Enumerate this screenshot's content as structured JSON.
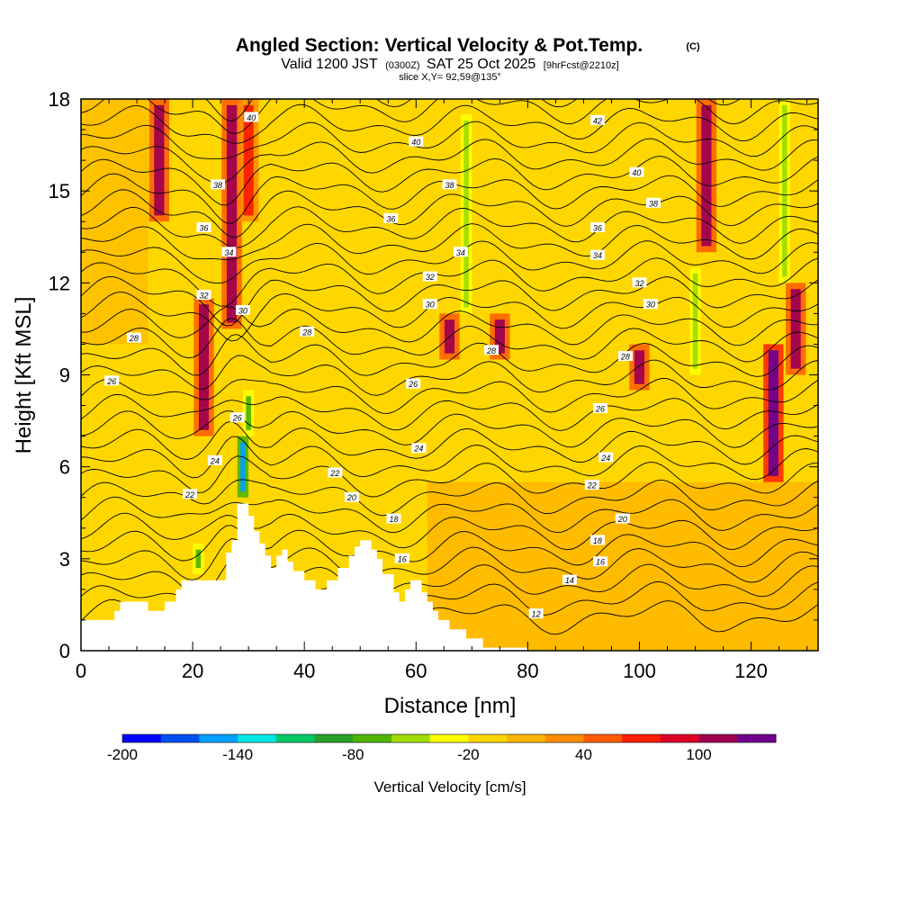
{
  "chart_data": {
    "type": "heatmap",
    "title": "Angled Section: Vertical Velocity & Pot.Temp.",
    "title_suffix": "(C)",
    "subtitle_a": "Valid 1200 JST",
    "subtitle_b": "(0300Z)",
    "subtitle_c": "SAT 25 Oct 2025",
    "subtitle_d": "[9hrFcst@2210z]",
    "slice_label": "slice X,Y= 92,59@135°",
    "xlabel": "Distance [nm]",
    "ylabel": "Height [Kft MSL]",
    "xlim": [
      0,
      132
    ],
    "ylim": [
      0,
      18
    ],
    "x_ticks": [
      0,
      20,
      40,
      60,
      80,
      100,
      120
    ],
    "y_ticks": [
      0,
      3,
      6,
      9,
      12,
      15,
      18
    ],
    "colorbar": {
      "label": "Vertical Velocity [cm/s]",
      "range": [
        -200,
        140
      ],
      "tick_values": [
        -200,
        -140,
        -80,
        -20,
        40,
        100
      ],
      "colors": [
        "#0000ff",
        "#0050f0",
        "#00a0ff",
        "#00e5e5",
        "#00c864",
        "#28a028",
        "#50b400",
        "#a0dc00",
        "#ffff00",
        "#ffd700",
        "#ffb400",
        "#ff8c00",
        "#ff5a00",
        "#ff1e00",
        "#dc0028",
        "#a00050",
        "#6e008c"
      ]
    },
    "terrain_kft": [
      [
        0,
        1
      ],
      [
        6,
        1
      ],
      [
        6,
        1.3
      ],
      [
        7,
        1.3
      ],
      [
        7,
        1.6
      ],
      [
        12,
        1.6
      ],
      [
        12,
        1.3
      ],
      [
        15,
        1.3
      ],
      [
        15,
        1.6
      ],
      [
        17,
        1.6
      ],
      [
        17,
        2
      ],
      [
        18,
        2
      ],
      [
        18,
        2.3
      ],
      [
        26,
        2.3
      ],
      [
        26,
        3.2
      ],
      [
        27,
        3.2
      ],
      [
        27,
        3.6
      ],
      [
        28,
        3.6
      ],
      [
        28,
        4.8
      ],
      [
        30,
        4.8
      ],
      [
        30,
        4.4
      ],
      [
        31,
        4.4
      ],
      [
        31,
        3.9
      ],
      [
        32,
        3.9
      ],
      [
        32,
        3.5
      ],
      [
        33,
        3.5
      ],
      [
        33,
        3.1
      ],
      [
        34,
        3.1
      ],
      [
        34,
        2.7
      ],
      [
        35,
        2.7
      ],
      [
        35,
        3.1
      ],
      [
        36,
        3.1
      ],
      [
        36,
        3.3
      ],
      [
        37,
        3.3
      ],
      [
        37,
        2.9
      ],
      [
        38,
        2.9
      ],
      [
        38,
        2.6
      ],
      [
        40,
        2.6
      ],
      [
        40,
        2.3
      ],
      [
        42,
        2.3
      ],
      [
        42,
        2
      ],
      [
        44,
        2
      ],
      [
        44,
        2.3
      ],
      [
        46,
        2.3
      ],
      [
        46,
        2.7
      ],
      [
        48,
        2.7
      ],
      [
        48,
        3.1
      ],
      [
        49,
        3.1
      ],
      [
        49,
        3.4
      ],
      [
        50,
        3.4
      ],
      [
        50,
        3.6
      ],
      [
        52,
        3.6
      ],
      [
        52,
        3.3
      ],
      [
        53,
        3.3
      ],
      [
        53,
        3
      ],
      [
        54,
        3
      ],
      [
        54,
        2.5
      ],
      [
        56,
        2.5
      ],
      [
        56,
        1.9
      ],
      [
        57,
        1.9
      ],
      [
        57,
        1.6
      ],
      [
        58,
        1.6
      ],
      [
        58,
        2
      ],
      [
        59,
        2
      ],
      [
        59,
        2.3
      ],
      [
        61,
        2.3
      ],
      [
        61,
        1.9
      ],
      [
        62,
        1.9
      ],
      [
        62,
        1.6
      ],
      [
        63,
        1.6
      ],
      [
        63,
        1.3
      ],
      [
        64,
        1.3
      ],
      [
        64,
        1
      ],
      [
        66,
        1
      ],
      [
        66,
        0.7
      ],
      [
        69,
        0.7
      ],
      [
        69,
        0.4
      ],
      [
        72,
        0.4
      ],
      [
        72,
        0.1
      ],
      [
        80,
        0.1
      ],
      [
        80,
        0
      ],
      [
        132,
        0
      ]
    ],
    "updraft_bands": [
      {
        "x": 14,
        "y0": 14,
        "y1": 18,
        "w": 100
      },
      {
        "x": 22,
        "y0": 7,
        "y1": 11.5,
        "w": 100
      },
      {
        "x": 27,
        "y0": 10.5,
        "y1": 18,
        "w": 100
      },
      {
        "x": 30,
        "y0": 14,
        "y1": 18,
        "w": 60
      },
      {
        "x": 66,
        "y0": 9.5,
        "y1": 11,
        "w": 100
      },
      {
        "x": 75,
        "y0": 9.5,
        "y1": 11,
        "w": 100
      },
      {
        "x": 100,
        "y0": 8.5,
        "y1": 10,
        "w": 100
      },
      {
        "x": 112,
        "y0": 13,
        "y1": 18,
        "w": 100
      },
      {
        "x": 124,
        "y0": 5.5,
        "y1": 10,
        "w": 130
      },
      {
        "x": 128,
        "y0": 9,
        "y1": 12,
        "w": 100
      }
    ],
    "downdraft_bands": [
      {
        "x": 29,
        "y0": 5,
        "y1": 7,
        "w": -150
      },
      {
        "x": 30,
        "y0": 7,
        "y1": 8.5,
        "w": -80
      },
      {
        "x": 21,
        "y0": 2.5,
        "y1": 3.5,
        "w": -80
      },
      {
        "x": 69,
        "y0": 11,
        "y1": 17.5,
        "w": -60
      },
      {
        "x": 110,
        "y0": 9,
        "y1": 12.5,
        "w": -60
      },
      {
        "x": 126,
        "y0": 12,
        "y1": 18,
        "w": -60
      }
    ],
    "theta_contours": [
      {
        "value": 12,
        "label": "12"
      },
      {
        "value": 14,
        "label": "14"
      },
      {
        "value": 16,
        "label": "16"
      },
      {
        "value": 18,
        "label": "18"
      },
      {
        "value": 20,
        "label": "20"
      },
      {
        "value": 22,
        "label": "22"
      },
      {
        "value": 24,
        "label": "24"
      },
      {
        "value": 26,
        "label": "26"
      },
      {
        "value": 28,
        "label": "28"
      },
      {
        "value": 30,
        "label": "30"
      },
      {
        "value": 32,
        "label": "32"
      },
      {
        "value": 34,
        "label": "34"
      },
      {
        "value": 36,
        "label": "36"
      },
      {
        "value": 38,
        "label": "38"
      },
      {
        "value": 40,
        "label": "40"
      },
      {
        "value": 42,
        "label": "42"
      }
    ],
    "contour_labels": [
      {
        "text": "40",
        "x": 30.5,
        "y": 17.4
      },
      {
        "text": "40",
        "x": 60,
        "y": 16.6
      },
      {
        "text": "42",
        "x": 92.5,
        "y": 17.3
      },
      {
        "text": "40",
        "x": 99.5,
        "y": 15.6
      },
      {
        "text": "38",
        "x": 24.5,
        "y": 15.2
      },
      {
        "text": "38",
        "x": 66,
        "y": 15.2
      },
      {
        "text": "38",
        "x": 102.5,
        "y": 14.6
      },
      {
        "text": "36",
        "x": 22,
        "y": 13.8
      },
      {
        "text": "36",
        "x": 55.5,
        "y": 14.1
      },
      {
        "text": "36",
        "x": 92.5,
        "y": 13.8
      },
      {
        "text": "34",
        "x": 26.5,
        "y": 13
      },
      {
        "text": "34",
        "x": 68,
        "y": 13
      },
      {
        "text": "34",
        "x": 92.5,
        "y": 12.9
      },
      {
        "text": "32",
        "x": 22,
        "y": 11.6
      },
      {
        "text": "32",
        "x": 62.5,
        "y": 12.2
      },
      {
        "text": "32",
        "x": 100,
        "y": 12
      },
      {
        "text": "30",
        "x": 29,
        "y": 11.1
      },
      {
        "text": "30",
        "x": 62.5,
        "y": 11.3
      },
      {
        "text": "30",
        "x": 102,
        "y": 11.3
      },
      {
        "text": "28",
        "x": 9.5,
        "y": 10.2
      },
      {
        "text": "28",
        "x": 40.5,
        "y": 10.4
      },
      {
        "text": "28",
        "x": 73.5,
        "y": 9.8
      },
      {
        "text": "28",
        "x": 97.5,
        "y": 9.6
      },
      {
        "text": "26",
        "x": 5.5,
        "y": 8.8
      },
      {
        "text": "26",
        "x": 59.5,
        "y": 8.7
      },
      {
        "text": "26",
        "x": 93,
        "y": 7.9
      },
      {
        "text": "26",
        "x": 28,
        "y": 7.6
      },
      {
        "text": "24",
        "x": 24,
        "y": 6.2
      },
      {
        "text": "24",
        "x": 60.5,
        "y": 6.6
      },
      {
        "text": "24",
        "x": 94,
        "y": 6.3
      },
      {
        "text": "22",
        "x": 45.5,
        "y": 5.8
      },
      {
        "text": "22",
        "x": 91.5,
        "y": 5.4
      },
      {
        "text": "22",
        "x": 19.5,
        "y": 5.1
      },
      {
        "text": "20",
        "x": 48.5,
        "y": 5
      },
      {
        "text": "20",
        "x": 97,
        "y": 4.3
      },
      {
        "text": "18",
        "x": 56,
        "y": 4.3
      },
      {
        "text": "18",
        "x": 92.5,
        "y": 3.6
      },
      {
        "text": "16",
        "x": 57.5,
        "y": 3
      },
      {
        "text": "16",
        "x": 93,
        "y": 2.9
      },
      {
        "text": "14",
        "x": 87.5,
        "y": 2.3
      },
      {
        "text": "12",
        "x": 81.5,
        "y": 1.2
      }
    ]
  }
}
